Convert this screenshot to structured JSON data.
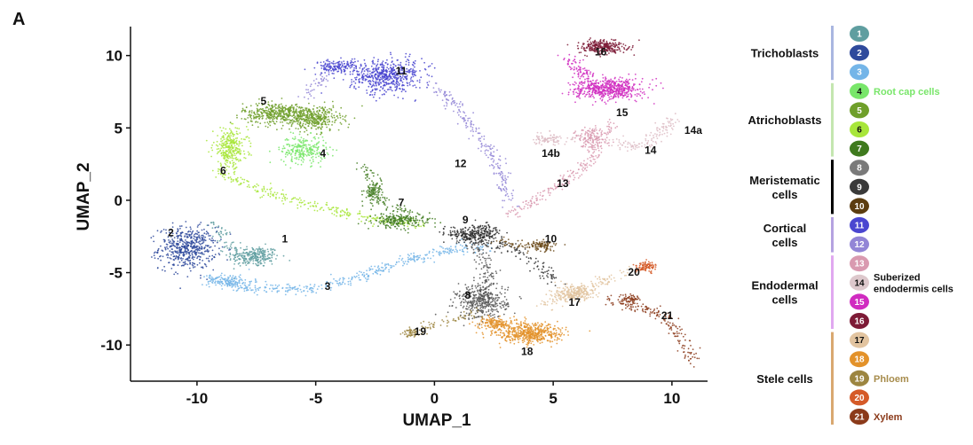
{
  "panel_letter": "A",
  "chart_data": {
    "type": "scatter",
    "title": "",
    "xlabel": "UMAP_1",
    "ylabel": "UMAP_2",
    "xlim": [
      -12.8,
      11.5
    ],
    "ylim": [
      -12.5,
      12.0
    ],
    "xticks": [
      -10,
      -5,
      0,
      5,
      10
    ],
    "yticks": [
      -10,
      -5,
      0,
      5,
      10
    ],
    "grid": false,
    "legend_position": "right",
    "clusters": [
      {
        "id": "1",
        "color": "#5f9ea0",
        "label_x": -6.3,
        "label_y": -2.9,
        "blobs": [
          [
            -7.6,
            -3.9,
            0.9,
            0.6,
            230
          ]
        ],
        "path": [
          [
            -9.4,
            -1.6
          ],
          [
            -8.2,
            -3.6
          ],
          [
            -6.9,
            -3.8
          ]
        ],
        "path_n": 80
      },
      {
        "id": "2",
        "color": "#2f4a9c",
        "label_x": -11.1,
        "label_y": -2.5,
        "blobs": [
          [
            -10.4,
            -3.3,
            1.0,
            1.2,
            520
          ]
        ],
        "path": [],
        "path_n": 0
      },
      {
        "id": "3",
        "color": "#74b5e8",
        "label_x": -4.5,
        "label_y": -6.2,
        "blobs": [
          [
            -8.6,
            -5.6,
            0.8,
            0.4,
            120
          ]
        ],
        "path": [
          [
            -9.7,
            -5.3
          ],
          [
            -8.0,
            -6.0
          ],
          [
            -5.5,
            -6.2
          ],
          [
            -3.0,
            -5.2
          ],
          [
            -1.0,
            -4.0
          ],
          [
            0.8,
            -3.4
          ],
          [
            2.2,
            -3.3
          ]
        ],
        "path_n": 420
      },
      {
        "id": "4",
        "color": "#79e66a",
        "label_x": -4.7,
        "label_y": 3.0,
        "blobs": [
          [
            -5.5,
            3.5,
            0.8,
            0.8,
            260
          ]
        ],
        "path": [],
        "path_n": 0
      },
      {
        "id": "5",
        "color": "#6f9f2a",
        "label_x": -7.2,
        "label_y": 6.6,
        "blobs": [
          [
            -6.5,
            6.0,
            1.3,
            0.6,
            460
          ],
          [
            -5.0,
            5.6,
            0.9,
            0.7,
            300
          ]
        ],
        "path": [],
        "path_n": 0
      },
      {
        "id": "6",
        "color": "#a8e63a",
        "label_x": -8.9,
        "label_y": 1.8,
        "blobs": [
          [
            -8.6,
            3.6,
            0.6,
            1.1,
            300
          ]
        ],
        "path": [
          [
            -9.2,
            2.0
          ],
          [
            -7.0,
            0.5
          ],
          [
            -5.0,
            -0.5
          ],
          [
            -2.5,
            -1.3
          ],
          [
            -0.5,
            -1.7
          ]
        ],
        "path_n": 260
      },
      {
        "id": "7",
        "color": "#3f7a1e",
        "label_x": -1.4,
        "label_y": -0.4,
        "blobs": [
          [
            -1.6,
            -1.4,
            0.8,
            0.4,
            200
          ],
          [
            -2.6,
            0.5,
            0.3,
            0.6,
            80
          ]
        ],
        "path": [
          [
            -3.0,
            2.5
          ],
          [
            -2.2,
            0.0
          ],
          [
            0.0,
            -1.6
          ]
        ],
        "path_n": 120
      },
      {
        "id": "8",
        "color": "#555555",
        "label_x": 1.4,
        "label_y": -6.8,
        "blobs": [
          [
            2.0,
            -7.0,
            0.9,
            1.0,
            360
          ]
        ],
        "path": [
          [
            1.6,
            -2.6
          ],
          [
            2.3,
            -4.8
          ],
          [
            2.0,
            -8.0
          ]
        ],
        "path_n": 140
      },
      {
        "id": "9",
        "color": "#303030",
        "label_x": 1.3,
        "label_y": -1.6,
        "blobs": [
          [
            1.8,
            -2.3,
            0.9,
            0.5,
            260
          ]
        ],
        "path": [
          [
            0.5,
            -2.2
          ],
          [
            3.5,
            -3.5
          ],
          [
            5.3,
            -5.8
          ]
        ],
        "path_n": 150
      },
      {
        "id": "10",
        "color": "#6b4a1a",
        "label_x": 4.9,
        "label_y": -2.9,
        "blobs": [
          [
            4.5,
            -3.1,
            0.5,
            0.3,
            80
          ]
        ],
        "path": [
          [
            2.6,
            -2.8
          ],
          [
            4.9,
            -3.4
          ]
        ],
        "path_n": 60
      },
      {
        "id": "11",
        "color": "#4a46d0",
        "label_x": -1.4,
        "label_y": 8.7,
        "blobs": [
          [
            -2.0,
            8.6,
            1.3,
            0.9,
            560
          ],
          [
            -4.0,
            9.2,
            0.8,
            0.4,
            160
          ]
        ],
        "path": [],
        "path_n": 0
      },
      {
        "id": "12",
        "color": "#9285d6",
        "label_x": 1.1,
        "label_y": 2.3,
        "blobs": [],
        "path": [
          [
            -4.6,
            8.6
          ],
          [
            -5.4,
            7.0
          ]
        ],
        "path_n": 40,
        "path2": [
          [
            0.0,
            8.0
          ],
          [
            1.2,
            6.0
          ],
          [
            2.3,
            3.5
          ],
          [
            3.0,
            1.0
          ],
          [
            3.2,
            -0.2
          ]
        ],
        "path2_n": 220
      },
      {
        "id": "13",
        "color": "#d99ab0",
        "label_x": 5.4,
        "label_y": 0.9,
        "blobs": [
          [
            6.5,
            4.3,
            0.5,
            0.6,
            120
          ]
        ],
        "path": [
          [
            3.2,
            -1.0
          ],
          [
            5.0,
            0.8
          ],
          [
            6.5,
            2.6
          ],
          [
            7.5,
            5.4
          ]
        ],
        "path_n": 220
      },
      {
        "id": "14",
        "color": "#ddbcc4",
        "label_x": 9.1,
        "label_y": 3.2,
        "blobs": [],
        "path": [
          [
            7.5,
            4.0
          ],
          [
            8.8,
            3.7
          ],
          [
            10.2,
            5.6
          ]
        ],
        "path_n": 120
      },
      {
        "id": "14a",
        "color": "#ddbcc4",
        "label_x": 10.9,
        "label_y": 4.6,
        "blobs": [],
        "path": [],
        "path_n": 0
      },
      {
        "id": "14b",
        "color": "#ddbcc4",
        "label_x": 4.9,
        "label_y": 3.0,
        "blobs": [
          [
            4.8,
            4.2,
            0.5,
            0.3,
            60
          ]
        ],
        "path": [
          [
            4.3,
            4.3
          ],
          [
            6.0,
            4.3
          ]
        ],
        "path_n": 30
      },
      {
        "id": "15",
        "color": "#d02bc0",
        "label_x": 7.9,
        "label_y": 5.8,
        "blobs": [
          [
            7.3,
            7.7,
            1.2,
            0.6,
            560
          ]
        ],
        "path": [
          [
            6.5,
            8.5
          ],
          [
            5.6,
            9.8
          ]
        ],
        "path_n": 70
      },
      {
        "id": "16",
        "color": "#7d1a36",
        "label_x": 7.0,
        "label_y": 10.0,
        "blobs": [
          [
            7.1,
            10.6,
            0.8,
            0.4,
            280
          ]
        ],
        "path": [],
        "path_n": 0
      },
      {
        "id": "17",
        "color": "#e2c4a0",
        "label_x": 5.9,
        "label_y": -7.3,
        "blobs": [
          [
            5.9,
            -6.4,
            0.7,
            0.5,
            240
          ]
        ],
        "path": [
          [
            4.5,
            -7.3
          ],
          [
            7.0,
            -5.7
          ],
          [
            8.3,
            -4.8
          ]
        ],
        "path_n": 120
      },
      {
        "id": "18",
        "color": "#e3922a",
        "label_x": 3.9,
        "label_y": -10.7,
        "blobs": [
          [
            4.0,
            -9.2,
            1.1,
            0.6,
            520
          ],
          [
            2.5,
            -8.5,
            0.6,
            0.4,
            160
          ]
        ],
        "path": [],
        "path_n": 0
      },
      {
        "id": "19",
        "color": "#9c8540",
        "label_x": -0.6,
        "label_y": -9.3,
        "blobs": [
          [
            -1.0,
            -9.1,
            0.25,
            0.25,
            40
          ]
        ],
        "path": [
          [
            -1.3,
            -9.3
          ],
          [
            0.5,
            -8.3
          ],
          [
            1.8,
            -7.7
          ]
        ],
        "path_n": 70
      },
      {
        "id": "20",
        "color": "#d55a28",
        "label_x": 8.4,
        "label_y": -5.2,
        "blobs": [
          [
            8.9,
            -4.6,
            0.35,
            0.3,
            100
          ]
        ],
        "path": [],
        "path_n": 0
      },
      {
        "id": "21",
        "color": "#8b3a1a",
        "label_x": 9.8,
        "label_y": -8.2,
        "blobs": [
          [
            8.2,
            -6.8,
            0.4,
            0.3,
            70
          ]
        ],
        "path": [
          [
            7.3,
            -6.9
          ],
          [
            9.6,
            -7.9
          ],
          [
            10.4,
            -9.6
          ],
          [
            10.9,
            -11.3
          ]
        ],
        "path_n": 170
      }
    ]
  },
  "legend": {
    "groups": [
      {
        "name": "Trichoblasts",
        "bar_color": "#a9b6e0",
        "items": [
          {
            "num": "1",
            "color": "#5f9ea0",
            "text_color": "#ffffff",
            "note": "",
            "note_color": ""
          },
          {
            "num": "2",
            "color": "#2f4a9c",
            "text_color": "#ffffff",
            "note": "",
            "note_color": ""
          },
          {
            "num": "3",
            "color": "#74b5e8",
            "text_color": "#ffffff",
            "note": "",
            "note_color": ""
          }
        ]
      },
      {
        "name": "Atrichoblasts",
        "bar_color": "#c4e6b0",
        "items": [
          {
            "num": "4",
            "color": "#79e66a",
            "text_color": "#111111",
            "note": "Root cap cells",
            "note_color": "#79e66a"
          },
          {
            "num": "5",
            "color": "#6f9f2a",
            "text_color": "#ffffff",
            "note": "",
            "note_color": ""
          },
          {
            "num": "6",
            "color": "#a8e63a",
            "text_color": "#111111",
            "note": "",
            "note_color": ""
          },
          {
            "num": "7",
            "color": "#3f7a1e",
            "text_color": "#ffffff",
            "note": "",
            "note_color": ""
          }
        ]
      },
      {
        "name": "Meristematic\ncells",
        "bar_color": "#000000",
        "items": [
          {
            "num": "8",
            "color": "#7a7a7a",
            "text_color": "#ffffff",
            "note": "",
            "note_color": ""
          },
          {
            "num": "9",
            "color": "#3a3a3a",
            "text_color": "#ffffff",
            "note": "",
            "note_color": ""
          },
          {
            "num": "10",
            "color": "#5c3d10",
            "text_color": "#ffffff",
            "note": "",
            "note_color": ""
          }
        ]
      },
      {
        "name": "Cortical\ncells",
        "bar_color": "#b5a2e0",
        "items": [
          {
            "num": "11",
            "color": "#4a46d0",
            "text_color": "#ffffff",
            "note": "",
            "note_color": ""
          },
          {
            "num": "12",
            "color": "#9285d6",
            "text_color": "#ffffff",
            "note": "",
            "note_color": ""
          }
        ]
      },
      {
        "name": "Endodermal\ncells",
        "bar_color": "#e0a8f0",
        "items": [
          {
            "num": "13",
            "color": "#d99ab0",
            "text_color": "#ffffff",
            "note": "",
            "note_color": ""
          },
          {
            "num": "14",
            "color": "#ddc8cc",
            "text_color": "#111111",
            "note": "Suberized\nendodermis cells",
            "note_color": "#111111"
          },
          {
            "num": "15",
            "color": "#d02bc0",
            "text_color": "#ffffff",
            "note": "",
            "note_color": ""
          },
          {
            "num": "16",
            "color": "#7d1a36",
            "text_color": "#ffffff",
            "note": "",
            "note_color": ""
          }
        ]
      },
      {
        "name": "Stele cells",
        "bar_color": "#d9a870",
        "items": [
          {
            "num": "17",
            "color": "#e2c4a0",
            "text_color": "#111111",
            "note": "",
            "note_color": ""
          },
          {
            "num": "18",
            "color": "#e3922a",
            "text_color": "#ffffff",
            "note": "",
            "note_color": ""
          },
          {
            "num": "19",
            "color": "#9c8540",
            "text_color": "#ffffff",
            "note": "Phloem",
            "note_color": "#a78c4c"
          },
          {
            "num": "20",
            "color": "#d55a28",
            "text_color": "#ffffff",
            "note": "",
            "note_color": ""
          },
          {
            "num": "21",
            "color": "#8b3a1a",
            "text_color": "#ffffff",
            "note": "Xylem",
            "note_color": "#8b3a1a"
          }
        ]
      }
    ]
  }
}
